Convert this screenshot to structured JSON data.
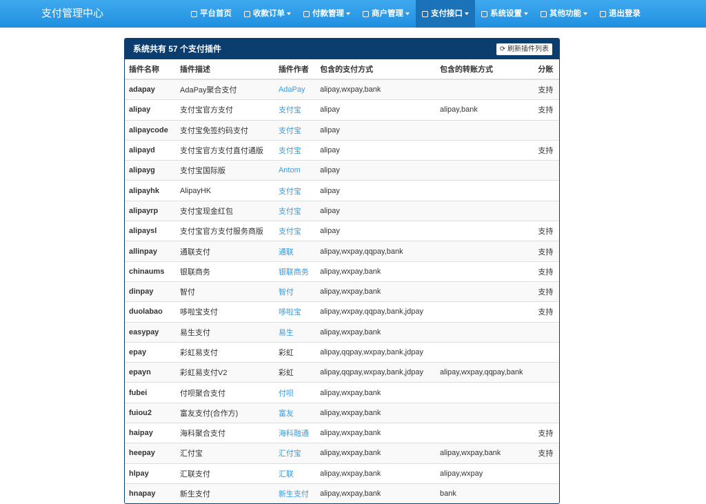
{
  "navbar": {
    "brand": "支付管理中心",
    "items": [
      {
        "label": "平台首页",
        "dropdown": false,
        "active": false
      },
      {
        "label": "收款订单",
        "dropdown": true,
        "active": false
      },
      {
        "label": "付款管理",
        "dropdown": true,
        "active": false
      },
      {
        "label": "商户管理",
        "dropdown": true,
        "active": false
      },
      {
        "label": "支付接口",
        "dropdown": true,
        "active": true
      },
      {
        "label": "系统设置",
        "dropdown": true,
        "active": false
      },
      {
        "label": "其他功能",
        "dropdown": true,
        "active": false
      },
      {
        "label": "退出登录",
        "dropdown": false,
        "active": false
      }
    ]
  },
  "panel": {
    "title": "系统共有 57 个支付插件",
    "button": "刷新插件列表"
  },
  "table": {
    "headers": [
      "插件名称",
      "插件描述",
      "插件作者",
      "包含的支付方式",
      "包含的转账方式",
      "分账"
    ],
    "rows": [
      {
        "name": "adapay",
        "desc": "AdaPay聚合支付",
        "author": "AdaPay",
        "author_link": true,
        "pay": "alipay,wxpay,bank",
        "split": "支持"
      },
      {
        "name": "alipay",
        "desc": "支付宝官方支付",
        "author": "支付宝",
        "author_link": true,
        "pay": "alipay",
        "transfer": "alipay,bank",
        "split": "支持"
      },
      {
        "name": "alipaycode",
        "desc": "支付宝免签约码支付",
        "author": "支付宝",
        "author_link": true,
        "pay": "alipay"
      },
      {
        "name": "alipayd",
        "desc": "支付宝官方支付直付通版",
        "author": "支付宝",
        "author_link": true,
        "pay": "alipay",
        "split": "支持"
      },
      {
        "name": "alipayg",
        "desc": "支付宝国际版",
        "author": "Antom",
        "author_link": true,
        "pay": "alipay"
      },
      {
        "name": "alipayhk",
        "desc": "AlipayHK",
        "author": "支付宝",
        "author_link": true,
        "pay": "alipay"
      },
      {
        "name": "alipayrp",
        "desc": "支付宝现金红包",
        "author": "支付宝",
        "author_link": true,
        "pay": "alipay"
      },
      {
        "name": "alipaysl",
        "desc": "支付宝官方支付服务商版",
        "author": "支付宝",
        "author_link": true,
        "pay": "alipay",
        "split": "支持"
      },
      {
        "name": "allinpay",
        "desc": "通联支付",
        "author": "通联",
        "author_link": true,
        "pay": "alipay,wxpay,qqpay,bank",
        "split": "支持"
      },
      {
        "name": "chinaums",
        "desc": "银联商务",
        "author": "银联商务",
        "author_link": true,
        "pay": "alipay,wxpay,bank",
        "split": "支持"
      },
      {
        "name": "dinpay",
        "desc": "智付",
        "author": "智付",
        "author_link": true,
        "pay": "alipay,wxpay,bank",
        "split": "支持"
      },
      {
        "name": "duolabao",
        "desc": "哆啦宝支付",
        "author": "哆啦宝",
        "author_link": true,
        "pay": "alipay,wxpay,qqpay,bank,jdpay",
        "split": "支持"
      },
      {
        "name": "easypay",
        "desc": "易生支付",
        "author": "易生",
        "author_link": true,
        "pay": "alipay,wxpay,bank"
      },
      {
        "name": "epay",
        "desc": "彩虹易支付",
        "author": "彩虹",
        "author_link": false,
        "pay": "alipay,qqpay,wxpay,bank,jdpay"
      },
      {
        "name": "epayn",
        "desc": "彩虹易支付V2",
        "author": "彩虹",
        "author_link": false,
        "pay": "alipay,qqpay,wxpay,bank,jdpay",
        "transfer": "alipay,wxpay,qqpay,bank"
      },
      {
        "name": "fubei",
        "desc": "付呗聚合支付",
        "author": "付呗",
        "author_link": true,
        "pay": "alipay,wxpay,bank"
      },
      {
        "name": "fuiou2",
        "desc": "富友支付(合作方)",
        "author": "富友",
        "author_link": true,
        "pay": "alipay,wxpay,bank"
      },
      {
        "name": "haipay",
        "desc": "海科聚合支付",
        "author": "海科融通",
        "author_link": true,
        "pay": "alipay,wxpay,bank",
        "split": "支持"
      },
      {
        "name": "heepay",
        "desc": "汇付宝",
        "author": "汇付宝",
        "author_link": true,
        "pay": "alipay,wxpay,bank",
        "transfer": "alipay,wxpay,bank",
        "split": "支持"
      },
      {
        "name": "hlpay",
        "desc": "汇联支付",
        "author": "汇联",
        "author_link": true,
        "pay": "alipay,wxpay,bank",
        "transfer": "alipay,wxpay"
      },
      {
        "name": "hnapay",
        "desc": "新生支付",
        "author": "新生支付",
        "author_link": true,
        "pay": "alipay,wxpay,bank",
        "transfer": "bank"
      }
    ]
  }
}
